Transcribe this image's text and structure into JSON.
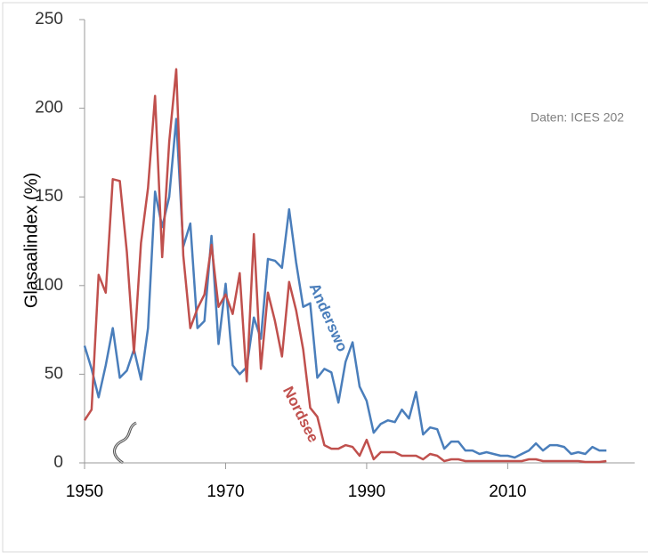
{
  "chart_data": {
    "type": "line",
    "ylabel": "Glasaalindex (%)",
    "source": "Daten: ICES 202",
    "x": [
      1950,
      1951,
      1952,
      1953,
      1954,
      1955,
      1956,
      1957,
      1958,
      1959,
      1960,
      1961,
      1962,
      1963,
      1964,
      1965,
      1966,
      1967,
      1968,
      1969,
      1970,
      1971,
      1972,
      1973,
      1974,
      1975,
      1976,
      1977,
      1978,
      1979,
      1980,
      1981,
      1982,
      1983,
      1984,
      1985,
      1986,
      1987,
      1988,
      1989,
      1990,
      1991,
      1992,
      1993,
      1994,
      1995,
      1996,
      1997,
      1998,
      1999,
      2000,
      2001,
      2002,
      2003,
      2004,
      2005,
      2006,
      2007,
      2008,
      2009,
      2010,
      2011,
      2012,
      2013,
      2014,
      2015,
      2016,
      2017,
      2018,
      2019,
      2020,
      2021,
      2022,
      2023,
      2024
    ],
    "series": [
      {
        "name": "Anderswo",
        "color": "#4a7ebb",
        "values": [
          66,
          53,
          37,
          55,
          76,
          48,
          52,
          64,
          47,
          76,
          153,
          133,
          150,
          194,
          122,
          135,
          76,
          80,
          128,
          67,
          101,
          55,
          50,
          54,
          82,
          70,
          115,
          114,
          110,
          143,
          113,
          88,
          90,
          48,
          53,
          51,
          34,
          57,
          68,
          43,
          35,
          17,
          22,
          24,
          23,
          30,
          25,
          40,
          16,
          20,
          19,
          8,
          12,
          12,
          7,
          7,
          5,
          6,
          5,
          4,
          4,
          3,
          5,
          7,
          11,
          7,
          10,
          10,
          9,
          5,
          6,
          5,
          9,
          7,
          7
        ]
      },
      {
        "name": "Nordsee",
        "color": "#c0504d",
        "values": [
          24,
          30,
          106,
          96,
          160,
          159,
          119,
          62,
          124,
          155,
          207,
          116,
          181,
          222,
          117,
          76,
          87,
          95,
          123,
          88,
          95,
          84,
          107,
          46,
          129,
          53,
          96,
          80,
          60,
          102,
          86,
          64,
          31,
          26,
          10,
          8,
          8,
          10,
          9,
          4,
          13,
          2,
          6,
          6,
          6,
          4,
          4,
          4,
          2,
          5,
          4,
          1,
          2,
          2,
          1,
          1,
          1,
          1,
          1,
          1,
          1,
          1,
          1,
          2,
          2,
          1,
          1,
          1,
          1,
          1,
          1,
          0.5,
          0.5,
          0.5,
          1
        ]
      }
    ],
    "xlim": [
      1950,
      2028
    ],
    "xticks": [
      1950,
      1970,
      1990,
      2010
    ],
    "ylim": [
      0,
      250
    ],
    "yticks": [
      0,
      50,
      100,
      150,
      200,
      250
    ]
  }
}
